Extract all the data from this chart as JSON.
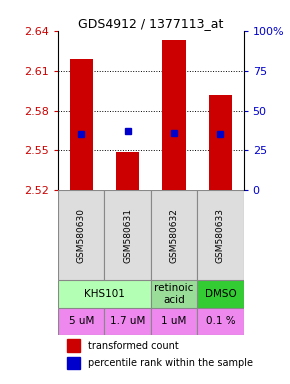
{
  "title": "GDS4912 / 1377113_at",
  "samples": [
    "GSM580630",
    "GSM580631",
    "GSM580632",
    "GSM580633"
  ],
  "bar_bottoms": [
    2.52,
    2.52,
    2.52,
    2.52
  ],
  "bar_tops": [
    2.619,
    2.549,
    2.633,
    2.592
  ],
  "percentile_values": [
    2.562,
    2.565,
    2.563,
    2.562
  ],
  "ylim": [
    2.52,
    2.64
  ],
  "yticks": [
    2.52,
    2.55,
    2.58,
    2.61,
    2.64
  ],
  "right_yticks": [
    0,
    25,
    50,
    75,
    100
  ],
  "right_ylabels": [
    "0",
    "25",
    "50",
    "75",
    "100%"
  ],
  "bar_color": "#cc0000",
  "dot_color": "#0000cc",
  "agent_spans": [
    [
      0,
      1,
      "KHS101",
      "#b3ffb3"
    ],
    [
      2,
      2,
      "retinoic\nacid",
      "#99dd99"
    ],
    [
      3,
      3,
      "DMSO",
      "#33cc33"
    ]
  ],
  "doses": [
    "5 uM",
    "1.7 uM",
    "1 uM",
    "0.1 %"
  ],
  "dose_color": "#ee88ee",
  "left_axis_color": "#cc0000",
  "right_axis_color": "#0000cc"
}
